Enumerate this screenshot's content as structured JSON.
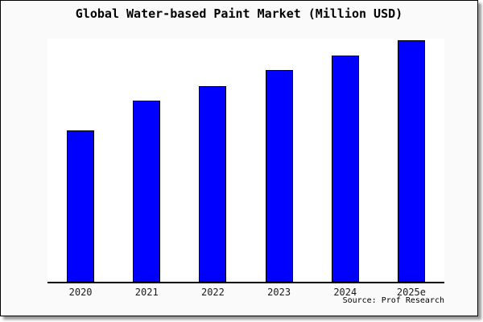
{
  "chart": {
    "title": "Global Water-based Paint Market (Million USD)",
    "source_credit": "Source: Prof Research"
  },
  "chart_data": {
    "type": "bar",
    "title": "Global Water-based Paint Market (Million USD)",
    "categories": [
      "2020",
      "2021",
      "2022",
      "2023",
      "2024",
      "2025e"
    ],
    "values": [
      62.4,
      74.6,
      80.6,
      87.2,
      93.1,
      99.4
    ],
    "xlabel": "",
    "ylabel": "",
    "ylim": [
      0,
      100
    ],
    "y_axis_labels": [],
    "grid": false,
    "legend": false,
    "bar_color": "#0000ff",
    "bar_border_color": "#000000",
    "source": "Source: Prof Research"
  },
  "colors": {
    "card_background": "#fafafa",
    "plot_background": "#ffffff",
    "bar_fill": "#0000ff",
    "bar_stroke": "#000000",
    "axis": "#000000",
    "border": "#000000",
    "shadow": "#999999"
  }
}
